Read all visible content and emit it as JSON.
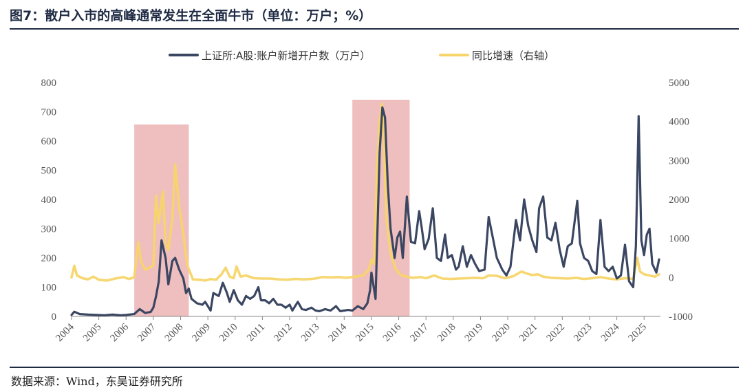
{
  "header": {
    "title": "图7：散户入市的高峰通常发生在全面牛市（单位：万户；%）"
  },
  "footer": {
    "source": "数据来源：Wind，东吴证券研究所"
  },
  "colors": {
    "series_left": "#3a4662",
    "series_right": "#f7d56a",
    "highlight": "#e9a8a8",
    "rule": "#1f2b44"
  },
  "chart_data": {
    "type": "line",
    "title": "",
    "legend_position": "top",
    "grid": false,
    "x_ticks": [
      "2004",
      "2005",
      "2006",
      "2007",
      "2008",
      "2009",
      "2010",
      "2011",
      "2012",
      "2013",
      "2014",
      "2015",
      "2016",
      "2017",
      "2018",
      "2019",
      "2020",
      "2021",
      "2022",
      "2023",
      "2024",
      "2025"
    ],
    "y_left": {
      "ticks": [
        "0",
        "100",
        "200",
        "300",
        "400",
        "500",
        "600",
        "700",
        "800"
      ],
      "range": [
        0,
        800
      ]
    },
    "y_right": {
      "ticks": [
        "-1000",
        "0",
        "1000",
        "2000",
        "3000",
        "4000",
        "5000"
      ],
      "range": [
        -1000,
        5000
      ]
    },
    "highlight_periods": [
      {
        "start": 2006.3,
        "end": 2008.3
      },
      {
        "start": 2014.3,
        "end": 2016.4
      }
    ],
    "series": [
      {
        "name": "上证所:A股:账户新增开户数（万户）",
        "axis": "left",
        "points": [
          [
            2004.0,
            5
          ],
          [
            2004.1,
            16
          ],
          [
            2004.3,
            8
          ],
          [
            2004.6,
            6
          ],
          [
            2004.9,
            5
          ],
          [
            2005.2,
            4
          ],
          [
            2005.5,
            6
          ],
          [
            2005.8,
            4
          ],
          [
            2006.0,
            5
          ],
          [
            2006.3,
            8
          ],
          [
            2006.5,
            25
          ],
          [
            2006.7,
            12
          ],
          [
            2006.9,
            15
          ],
          [
            2007.0,
            30
          ],
          [
            2007.1,
            70
          ],
          [
            2007.2,
            120
          ],
          [
            2007.3,
            260
          ],
          [
            2007.45,
            200
          ],
          [
            2007.55,
            110
          ],
          [
            2007.7,
            190
          ],
          [
            2007.8,
            200
          ],
          [
            2007.95,
            160
          ],
          [
            2008.1,
            130
          ],
          [
            2008.2,
            80
          ],
          [
            2008.3,
            95
          ],
          [
            2008.4,
            60
          ],
          [
            2008.6,
            45
          ],
          [
            2008.8,
            40
          ],
          [
            2008.9,
            50
          ],
          [
            2009.0,
            35
          ],
          [
            2009.1,
            20
          ],
          [
            2009.2,
            80
          ],
          [
            2009.4,
            70
          ],
          [
            2009.55,
            115
          ],
          [
            2009.7,
            80
          ],
          [
            2009.8,
            50
          ],
          [
            2009.95,
            90
          ],
          [
            2010.1,
            55
          ],
          [
            2010.25,
            40
          ],
          [
            2010.4,
            70
          ],
          [
            2010.55,
            60
          ],
          [
            2010.7,
            70
          ],
          [
            2010.85,
            100
          ],
          [
            2010.95,
            55
          ],
          [
            2011.1,
            55
          ],
          [
            2011.25,
            45
          ],
          [
            2011.4,
            60
          ],
          [
            2011.55,
            40
          ],
          [
            2011.7,
            40
          ],
          [
            2011.85,
            30
          ],
          [
            2012.0,
            40
          ],
          [
            2012.1,
            20
          ],
          [
            2012.3,
            50
          ],
          [
            2012.45,
            25
          ],
          [
            2012.6,
            22
          ],
          [
            2012.8,
            30
          ],
          [
            2012.95,
            20
          ],
          [
            2013.1,
            18
          ],
          [
            2013.3,
            25
          ],
          [
            2013.5,
            20
          ],
          [
            2013.7,
            35
          ],
          [
            2013.85,
            18
          ],
          [
            2014.0,
            20
          ],
          [
            2014.15,
            22
          ],
          [
            2014.3,
            20
          ],
          [
            2014.5,
            35
          ],
          [
            2014.7,
            25
          ],
          [
            2014.85,
            45
          ],
          [
            2014.95,
            90
          ],
          [
            2015.0,
            150
          ],
          [
            2015.15,
            60
          ],
          [
            2015.3,
            560
          ],
          [
            2015.4,
            715
          ],
          [
            2015.5,
            680
          ],
          [
            2015.6,
            450
          ],
          [
            2015.7,
            300
          ],
          [
            2015.85,
            200
          ],
          [
            2015.95,
            270
          ],
          [
            2016.05,
            290
          ],
          [
            2016.15,
            200
          ],
          [
            2016.3,
            410
          ],
          [
            2016.45,
            255
          ],
          [
            2016.6,
            250
          ],
          [
            2016.75,
            360
          ],
          [
            2016.85,
            300
          ],
          [
            2016.95,
            230
          ],
          [
            2017.1,
            265
          ],
          [
            2017.25,
            370
          ],
          [
            2017.4,
            200
          ],
          [
            2017.55,
            190
          ],
          [
            2017.7,
            280
          ],
          [
            2017.8,
            200
          ],
          [
            2017.95,
            210
          ],
          [
            2018.1,
            160
          ],
          [
            2018.2,
            170
          ],
          [
            2018.35,
            240
          ],
          [
            2018.5,
            170
          ],
          [
            2018.65,
            210
          ],
          [
            2018.8,
            180
          ],
          [
            2018.95,
            155
          ],
          [
            2019.15,
            160
          ],
          [
            2019.3,
            340
          ],
          [
            2019.45,
            270
          ],
          [
            2019.6,
            200
          ],
          [
            2019.8,
            160
          ],
          [
            2019.95,
            140
          ],
          [
            2020.1,
            170
          ],
          [
            2020.3,
            330
          ],
          [
            2020.45,
            260
          ],
          [
            2020.6,
            400
          ],
          [
            2020.75,
            310
          ],
          [
            2020.9,
            260
          ],
          [
            2021.05,
            220
          ],
          [
            2021.15,
            370
          ],
          [
            2021.3,
            410
          ],
          [
            2021.45,
            270
          ],
          [
            2021.6,
            260
          ],
          [
            2021.75,
            320
          ],
          [
            2021.9,
            230
          ],
          [
            2022.05,
            170
          ],
          [
            2022.2,
            240
          ],
          [
            2022.35,
            250
          ],
          [
            2022.55,
            395
          ],
          [
            2022.65,
            250
          ],
          [
            2022.8,
            200
          ],
          [
            2022.95,
            190
          ],
          [
            2023.1,
            155
          ],
          [
            2023.25,
            145
          ],
          [
            2023.4,
            330
          ],
          [
            2023.55,
            170
          ],
          [
            2023.7,
            155
          ],
          [
            2023.85,
            170
          ],
          [
            2024.0,
            130
          ],
          [
            2024.15,
            140
          ],
          [
            2024.3,
            245
          ],
          [
            2024.45,
            120
          ],
          [
            2024.6,
            100
          ],
          [
            2024.7,
            240
          ],
          [
            2024.8,
            685
          ],
          [
            2024.9,
            260
          ],
          [
            2025.0,
            210
          ],
          [
            2025.1,
            280
          ],
          [
            2025.2,
            300
          ],
          [
            2025.3,
            180
          ],
          [
            2025.45,
            150
          ],
          [
            2025.55,
            195
          ]
        ]
      },
      {
        "name": "同比增速（右轴）",
        "axis": "right",
        "points": [
          [
            2004.0,
            0
          ],
          [
            2004.1,
            300
          ],
          [
            2004.2,
            50
          ],
          [
            2004.4,
            -20
          ],
          [
            2004.6,
            -50
          ],
          [
            2004.8,
            20
          ],
          [
            2005.0,
            -60
          ],
          [
            2005.3,
            -80
          ],
          [
            2005.6,
            -30
          ],
          [
            2005.9,
            10
          ],
          [
            2006.1,
            -40
          ],
          [
            2006.3,
            0
          ],
          [
            2006.45,
            900
          ],
          [
            2006.55,
            400
          ],
          [
            2006.7,
            200
          ],
          [
            2006.85,
            250
          ],
          [
            2007.0,
            300
          ],
          [
            2007.1,
            2100
          ],
          [
            2007.2,
            1400
          ],
          [
            2007.35,
            2200
          ],
          [
            2007.45,
            900
          ],
          [
            2007.55,
            700
          ],
          [
            2007.7,
            1500
          ],
          [
            2007.8,
            2900
          ],
          [
            2007.95,
            1800
          ],
          [
            2008.1,
            1100
          ],
          [
            2008.25,
            300
          ],
          [
            2008.45,
            -50
          ],
          [
            2008.7,
            -60
          ],
          [
            2008.9,
            -80
          ],
          [
            2009.1,
            -40
          ],
          [
            2009.3,
            -60
          ],
          [
            2009.5,
            80
          ],
          [
            2009.65,
            250
          ],
          [
            2009.8,
            20
          ],
          [
            2009.95,
            -20
          ],
          [
            2010.05,
            280
          ],
          [
            2010.2,
            20
          ],
          [
            2010.4,
            50
          ],
          [
            2010.7,
            -20
          ],
          [
            2011.0,
            -30
          ],
          [
            2011.3,
            -30
          ],
          [
            2011.6,
            -50
          ],
          [
            2011.9,
            -60
          ],
          [
            2012.2,
            -40
          ],
          [
            2012.5,
            -50
          ],
          [
            2012.8,
            -40
          ],
          [
            2013.0,
            -20
          ],
          [
            2013.2,
            10
          ],
          [
            2013.5,
            0
          ],
          [
            2013.8,
            10
          ],
          [
            2014.1,
            -10
          ],
          [
            2014.4,
            20
          ],
          [
            2014.7,
            50
          ],
          [
            2014.9,
            200
          ],
          [
            2015.0,
            450
          ],
          [
            2015.1,
            350
          ],
          [
            2015.2,
            2800
          ],
          [
            2015.3,
            4000
          ],
          [
            2015.38,
            4450
          ],
          [
            2015.45,
            3700
          ],
          [
            2015.55,
            1500
          ],
          [
            2015.7,
            600
          ],
          [
            2015.9,
            200
          ],
          [
            2016.1,
            50
          ],
          [
            2016.3,
            20
          ],
          [
            2016.5,
            -10
          ],
          [
            2016.8,
            10
          ],
          [
            2017.0,
            -20
          ],
          [
            2017.3,
            50
          ],
          [
            2017.6,
            -30
          ],
          [
            2017.9,
            -40
          ],
          [
            2018.2,
            -30
          ],
          [
            2018.5,
            -20
          ],
          [
            2018.8,
            -10
          ],
          [
            2019.1,
            -20
          ],
          [
            2019.3,
            50
          ],
          [
            2019.6,
            40
          ],
          [
            2019.9,
            -20
          ],
          [
            2020.2,
            30
          ],
          [
            2020.5,
            150
          ],
          [
            2020.7,
            100
          ],
          [
            2020.9,
            60
          ],
          [
            2021.1,
            80
          ],
          [
            2021.3,
            20
          ],
          [
            2021.6,
            -10
          ],
          [
            2021.9,
            -20
          ],
          [
            2022.2,
            -30
          ],
          [
            2022.5,
            -10
          ],
          [
            2022.8,
            -40
          ],
          [
            2023.1,
            -20
          ],
          [
            2023.4,
            10
          ],
          [
            2023.7,
            -30
          ],
          [
            2024.0,
            -50
          ],
          [
            2024.3,
            -20
          ],
          [
            2024.6,
            -40
          ],
          [
            2024.75,
            500
          ],
          [
            2024.85,
            150
          ],
          [
            2025.0,
            80
          ],
          [
            2025.2,
            50
          ],
          [
            2025.4,
            20
          ],
          [
            2025.55,
            80
          ]
        ]
      }
    ]
  }
}
